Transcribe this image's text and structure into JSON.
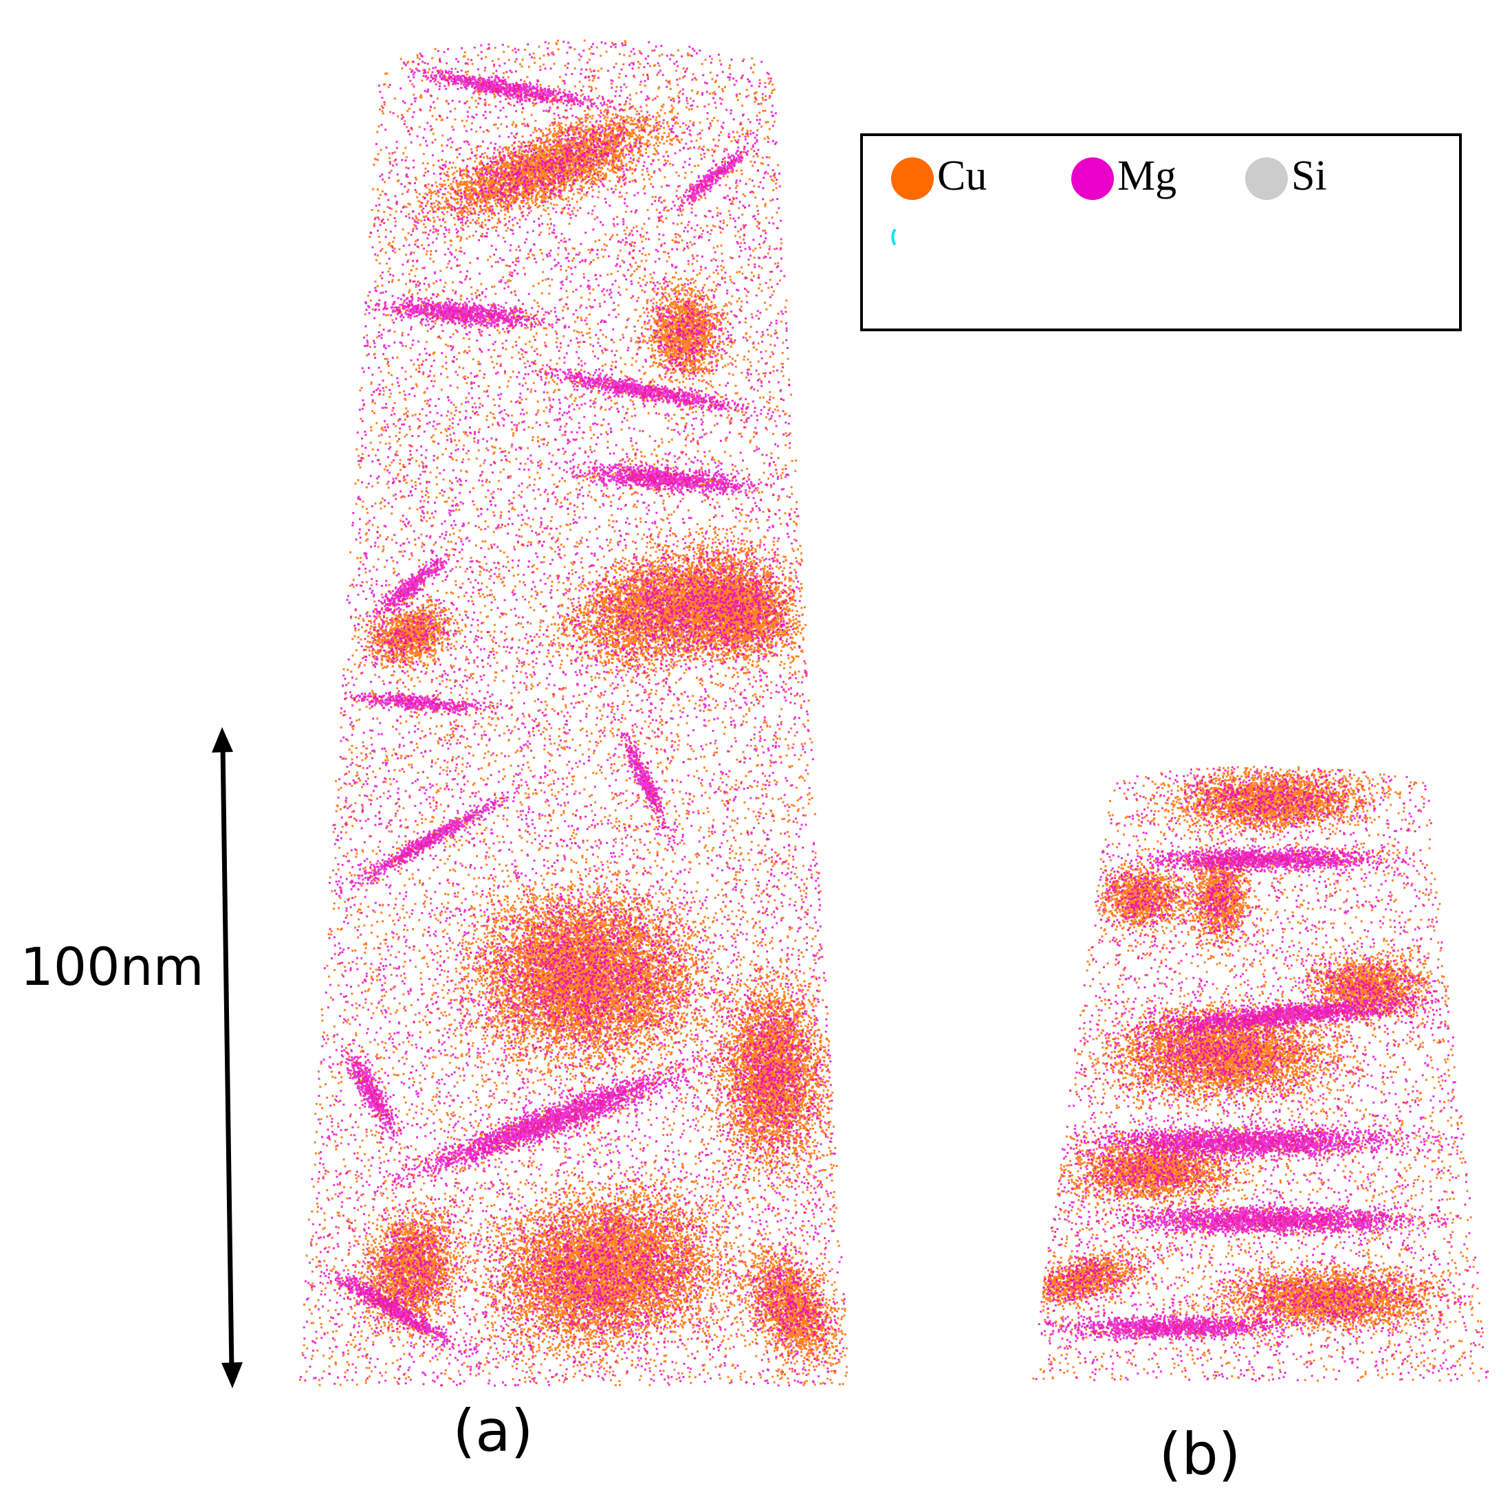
{
  "legend": {
    "items": [
      {
        "label": "Cu",
        "color": "#ff6a00"
      },
      {
        "label": "Mg",
        "color": "#e800c8"
      },
      {
        "label": "Si",
        "color": "#cccccc"
      }
    ]
  },
  "scale_bar": {
    "label": "100nm"
  },
  "panels": [
    {
      "label": "(a)"
    },
    {
      "label": "(b)"
    }
  ]
}
